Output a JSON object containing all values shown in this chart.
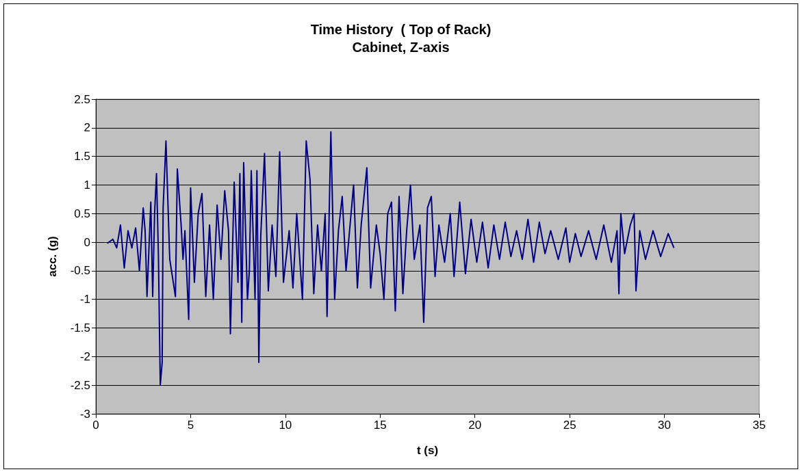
{
  "chart_data": {
    "type": "line",
    "title": "Time History  ( Top of Rack)",
    "subtitle": "Cabinet, Z-axis",
    "xlabel": "t (s)",
    "ylabel": "acc. (g)",
    "xlim": [
      0,
      35
    ],
    "xticks": [
      0,
      5,
      10,
      15,
      20,
      25,
      30,
      35
    ],
    "ylim": [
      -3,
      2.5
    ],
    "yticks": [
      -3,
      -2.5,
      -2,
      -1.5,
      -1,
      -0.5,
      0,
      0.5,
      1,
      1.5,
      2,
      2.5
    ],
    "grid": "y",
    "marker": "none",
    "line_style": "solid",
    "series": [
      {
        "color": "#000080",
        "x": [
          0.6,
          0.9,
          1.1,
          1.3,
          1.5,
          1.7,
          1.9,
          2.1,
          2.3,
          2.5,
          2.6,
          2.7,
          2.9,
          3.0,
          3.1,
          3.2,
          3.3,
          3.4,
          3.5,
          3.55,
          3.7,
          3.85,
          3.9,
          4.2,
          4.3,
          4.5,
          4.6,
          4.7,
          4.9,
          5.0,
          5.2,
          5.4,
          5.6,
          5.8,
          6.0,
          6.2,
          6.4,
          6.6,
          6.8,
          7.0,
          7.1,
          7.3,
          7.5,
          7.6,
          7.7,
          7.8,
          8.0,
          8.1,
          8.2,
          8.4,
          8.5,
          8.6,
          8.7,
          8.9,
          9.1,
          9.3,
          9.5,
          9.7,
          9.9,
          10.2,
          10.4,
          10.6,
          10.9,
          11.1,
          11.3,
          11.5,
          11.7,
          11.9,
          12.1,
          12.2,
          12.4,
          12.6,
          12.8,
          13.0,
          13.2,
          13.6,
          13.8,
          14.0,
          14.3,
          14.5,
          14.8,
          15.0,
          15.2,
          15.4,
          15.6,
          15.8,
          16.0,
          16.2,
          16.4,
          16.6,
          16.8,
          17.1,
          17.3,
          17.5,
          17.7,
          17.9,
          18.1,
          18.4,
          18.7,
          18.9,
          19.2,
          19.5,
          19.8,
          20.1,
          20.4,
          20.7,
          21.0,
          21.3,
          21.6,
          21.9,
          22.2,
          22.5,
          22.8,
          23.1,
          23.4,
          23.7,
          24.0,
          24.4,
          24.8,
          25.0,
          25.3,
          25.6,
          26.0,
          26.4,
          26.8,
          27.2,
          27.5,
          27.6,
          27.7,
          27.9,
          28.2,
          28.4,
          28.5,
          28.7,
          29.0,
          29.4,
          29.8,
          30.2,
          30.5
        ],
        "values": [
          -0.02,
          0.05,
          -0.1,
          0.3,
          -0.45,
          0.2,
          -0.1,
          0.25,
          -0.5,
          0.6,
          0.2,
          -0.95,
          0.7,
          -0.95,
          0.5,
          1.2,
          -0.2,
          -2.5,
          -2.1,
          0.6,
          1.77,
          0.2,
          -0.3,
          -0.95,
          1.28,
          0.3,
          -0.3,
          0.2,
          -1.35,
          0.95,
          -0.7,
          0.5,
          0.85,
          -0.95,
          0.3,
          -1.0,
          0.65,
          -0.3,
          0.9,
          0.2,
          -1.6,
          1.05,
          -0.7,
          1.2,
          -1.4,
          1.39,
          -1.0,
          -0.5,
          1.25,
          -1.0,
          1.25,
          -2.1,
          0.1,
          1.55,
          -0.85,
          0.3,
          -0.6,
          1.58,
          -0.7,
          0.2,
          -0.8,
          0.5,
          -1.0,
          1.77,
          1.1,
          -0.9,
          0.3,
          -0.5,
          0.5,
          -1.3,
          1.93,
          -1.0,
          0.2,
          0.8,
          -0.5,
          1.0,
          -0.8,
          0.3,
          1.3,
          -0.8,
          0.3,
          -0.2,
          -1.0,
          0.5,
          0.7,
          -1.2,
          0.8,
          -0.9,
          0.2,
          1.0,
          -0.3,
          0.3,
          -1.4,
          0.6,
          0.8,
          -0.6,
          0.3,
          -0.35,
          0.5,
          -0.6,
          0.7,
          -0.55,
          0.4,
          -0.35,
          0.35,
          -0.45,
          0.3,
          -0.3,
          0.35,
          -0.25,
          0.2,
          -0.3,
          0.4,
          -0.35,
          0.35,
          -0.2,
          0.2,
          -0.3,
          0.25,
          -0.35,
          0.15,
          -0.25,
          0.2,
          -0.3,
          0.3,
          -0.35,
          0.2,
          -0.9,
          0.5,
          -0.2,
          0.3,
          0.5,
          -0.85,
          0.2,
          -0.3,
          0.2,
          -0.25,
          0.15,
          -0.1
        ]
      }
    ]
  }
}
